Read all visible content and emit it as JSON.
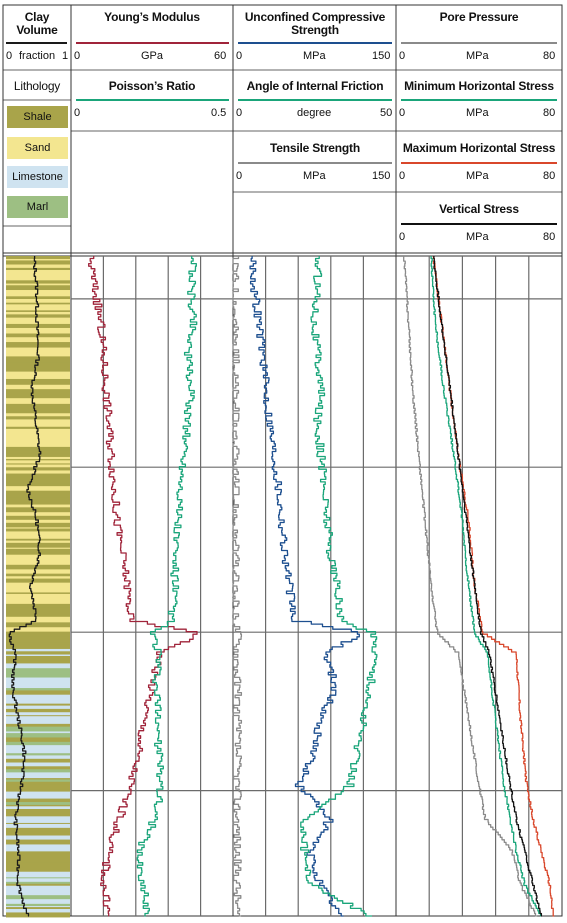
{
  "tracks": [
    {
      "id": "clay",
      "headers": [
        {
          "title": "Clay Volume",
          "unit": "fraction",
          "min": "0",
          "max": "1",
          "color": "#1a1a1a"
        }
      ],
      "lithology_title": "Lithology",
      "lithology_legend": [
        {
          "label": "Shale",
          "color": "#a9a44a"
        },
        {
          "label": "Sand",
          "color": "#f3e690"
        },
        {
          "label": "Limestone",
          "color": "#cfe3f0"
        },
        {
          "label": "Marl",
          "color": "#9dbf83"
        }
      ]
    },
    {
      "id": "elastic",
      "headers": [
        {
          "title": "Young’s Modulus",
          "unit": "GPa",
          "min": "0",
          "max": "60",
          "color": "#a0243a"
        },
        {
          "title": "Poisson’s Ratio",
          "unit": "",
          "min": "0",
          "max": "0.5",
          "color": "#1aa57a"
        }
      ]
    },
    {
      "id": "strength",
      "headers": [
        {
          "title": "Unconfined Compressive Strength",
          "unit": "MPa",
          "min": "0",
          "max": "150",
          "color": "#1d4f8f"
        },
        {
          "title": "Angle of Internal Friction",
          "unit": "degree",
          "min": "0",
          "max": "50",
          "color": "#1aa57a"
        },
        {
          "title": "Tensile Strength",
          "unit": "MPa",
          "min": "0",
          "max": "150",
          "color": "#8a8a8a"
        }
      ]
    },
    {
      "id": "stress",
      "headers": [
        {
          "title": "Pore Pressure",
          "unit": "MPa",
          "min": "0",
          "max": "80",
          "color": "#8a8a8a"
        },
        {
          "title": "Minimum Horizontal Stress",
          "unit": "MPa",
          "min": "0",
          "max": "80",
          "color": "#1aa57a"
        },
        {
          "title": "Maximum Horizontal Stress",
          "unit": "MPa",
          "min": "0",
          "max": "80",
          "color": "#d9472b"
        },
        {
          "title": "Vertical Stress",
          "unit": "MPa",
          "min": "0",
          "max": "80",
          "color": "#111111"
        }
      ]
    }
  ],
  "chart_data": {
    "type": "line",
    "title": "",
    "depth_axis": "relative depth (0 = top of plotted interval, 1 = base)",
    "grid": true,
    "lithology_column": [
      {
        "from": 0.0,
        "to": 0.57,
        "lithology": "Shale/Sand interbedded"
      },
      {
        "from": 0.57,
        "to": 1.0,
        "lithology": "Limestone/Shale/Marl interbedded"
      }
    ],
    "series": [
      {
        "name": "Clay Volume",
        "track": "clay",
        "unit": "fraction",
        "range": [
          0,
          1
        ],
        "color": "#1a1a1a",
        "depth": [
          0,
          0.05,
          0.1,
          0.15,
          0.2,
          0.25,
          0.3,
          0.35,
          0.4,
          0.45,
          0.5,
          0.55,
          0.57,
          0.6,
          0.65,
          0.7,
          0.75,
          0.8,
          0.85,
          0.9,
          0.95,
          1.0
        ],
        "values": [
          0.45,
          0.5,
          0.5,
          0.52,
          0.42,
          0.48,
          0.55,
          0.35,
          0.5,
          0.55,
          0.4,
          0.5,
          0.05,
          0.15,
          0.1,
          0.2,
          0.3,
          0.25,
          0.15,
          0.2,
          0.2,
          0.35
        ]
      },
      {
        "name": "Young’s Modulus",
        "track": "elastic",
        "unit": "GPa",
        "range": [
          0,
          60
        ],
        "color": "#a0243a",
        "depth": [
          0,
          0.05,
          0.1,
          0.15,
          0.2,
          0.25,
          0.3,
          0.35,
          0.4,
          0.45,
          0.5,
          0.55,
          0.57,
          0.6,
          0.65,
          0.7,
          0.75,
          0.8,
          0.85,
          0.9,
          0.95,
          1.0
        ],
        "values": [
          7,
          9,
          11,
          12,
          13,
          14,
          15,
          16,
          17,
          19,
          21,
          22,
          48,
          33,
          30,
          27,
          25,
          22,
          18,
          14,
          12,
          14
        ]
      },
      {
        "name": "Poisson’s Ratio",
        "track": "elastic",
        "unit": "",
        "range": [
          0,
          0.5
        ],
        "color": "#1aa57a",
        "depth": [
          0,
          0.05,
          0.1,
          0.15,
          0.2,
          0.25,
          0.3,
          0.35,
          0.4,
          0.45,
          0.5,
          0.55,
          0.57,
          0.6,
          0.65,
          0.7,
          0.75,
          0.8,
          0.85,
          0.9,
          0.95,
          1.0
        ],
        "values": [
          0.38,
          0.37,
          0.38,
          0.36,
          0.37,
          0.36,
          0.35,
          0.34,
          0.33,
          0.32,
          0.32,
          0.31,
          0.25,
          0.27,
          0.26,
          0.27,
          0.27,
          0.28,
          0.26,
          0.21,
          0.22,
          0.24
        ]
      },
      {
        "name": "Unconfined Compressive Strength",
        "track": "strength",
        "unit": "MPa",
        "range": [
          0,
          150
        ],
        "color": "#1d4f8f",
        "depth": [
          0,
          0.05,
          0.1,
          0.15,
          0.2,
          0.25,
          0.3,
          0.35,
          0.4,
          0.45,
          0.5,
          0.55,
          0.57,
          0.6,
          0.65,
          0.7,
          0.75,
          0.8,
          0.85,
          0.9,
          0.95,
          1.0
        ],
        "values": [
          18,
          20,
          24,
          28,
          30,
          34,
          38,
          42,
          45,
          48,
          52,
          56,
          120,
          85,
          95,
          80,
          75,
          60,
          90,
          70,
          80,
          100
        ]
      },
      {
        "name": "Angle of Internal Friction",
        "track": "strength",
        "unit": "degree",
        "range": [
          0,
          50
        ],
        "color": "#1aa57a",
        "depth": [
          0,
          0.05,
          0.1,
          0.15,
          0.2,
          0.25,
          0.3,
          0.35,
          0.4,
          0.45,
          0.5,
          0.55,
          0.57,
          0.6,
          0.65,
          0.7,
          0.75,
          0.8,
          0.85,
          0.9,
          0.95,
          1.0
        ],
        "values": [
          26,
          26,
          25,
          26,
          27,
          26,
          27,
          28,
          29,
          30,
          32,
          33,
          43,
          44,
          42,
          40,
          38,
          36,
          22,
          22,
          24,
          43
        ]
      },
      {
        "name": "Tensile Strength",
        "track": "strength",
        "unit": "MPa",
        "range": [
          0,
          150
        ],
        "color": "#8a8a8a",
        "depth": [
          0,
          0.05,
          0.1,
          0.15,
          0.2,
          0.25,
          0.3,
          0.35,
          0.4,
          0.45,
          0.5,
          0.55,
          0.57,
          0.6,
          0.65,
          0.7,
          0.75,
          0.8,
          0.85,
          0.9,
          0.95,
          1.0
        ],
        "values": [
          2,
          2,
          2,
          2,
          2,
          2,
          2,
          2,
          2,
          2,
          2,
          2,
          5,
          4,
          4,
          4,
          4,
          4,
          4,
          4,
          4,
          4
        ]
      },
      {
        "name": "Pore Pressure",
        "track": "stress",
        "unit": "MPa",
        "range": [
          0,
          80
        ],
        "color": "#8a8a8a",
        "depth": [
          0,
          0.1,
          0.2,
          0.3,
          0.4,
          0.5,
          0.57,
          0.6,
          0.7,
          0.8,
          0.85,
          0.9,
          0.95,
          1.0
        ],
        "values": [
          4,
          6,
          8,
          11,
          14,
          17,
          20,
          30,
          35,
          40,
          43,
          56,
          60,
          68
        ]
      },
      {
        "name": "Minimum Horizontal Stress",
        "track": "stress",
        "unit": "MPa",
        "range": [
          0,
          80
        ],
        "color": "#1aa57a",
        "depth": [
          0,
          0.1,
          0.2,
          0.3,
          0.4,
          0.5,
          0.57,
          0.6,
          0.7,
          0.8,
          0.85,
          0.9,
          0.95,
          1.0
        ],
        "values": [
          17,
          19,
          23,
          28,
          32,
          35,
          38,
          44,
          48,
          52,
          55,
          58,
          62,
          70
        ]
      },
      {
        "name": "Maximum Horizontal Stress",
        "track": "stress",
        "unit": "MPa",
        "range": [
          0,
          80
        ],
        "color": "#d9472b",
        "depth": [
          0,
          0.1,
          0.2,
          0.3,
          0.4,
          0.5,
          0.57,
          0.6,
          0.7,
          0.8,
          0.85,
          0.9,
          0.95,
          1.0
        ],
        "values": [
          18,
          22,
          26,
          30,
          35,
          38,
          42,
          58,
          60,
          63,
          66,
          70,
          74,
          76
        ]
      },
      {
        "name": "Vertical Stress",
        "track": "stress",
        "unit": "MPa",
        "range": [
          0,
          80
        ],
        "color": "#111111",
        "depth": [
          0,
          0.1,
          0.2,
          0.3,
          0.4,
          0.5,
          0.57,
          0.6,
          0.7,
          0.8,
          0.85,
          0.9,
          0.95,
          1.0
        ],
        "values": [
          18,
          22,
          26,
          30,
          34,
          38,
          41,
          45,
          50,
          55,
          58,
          62,
          66,
          70
        ]
      }
    ]
  }
}
